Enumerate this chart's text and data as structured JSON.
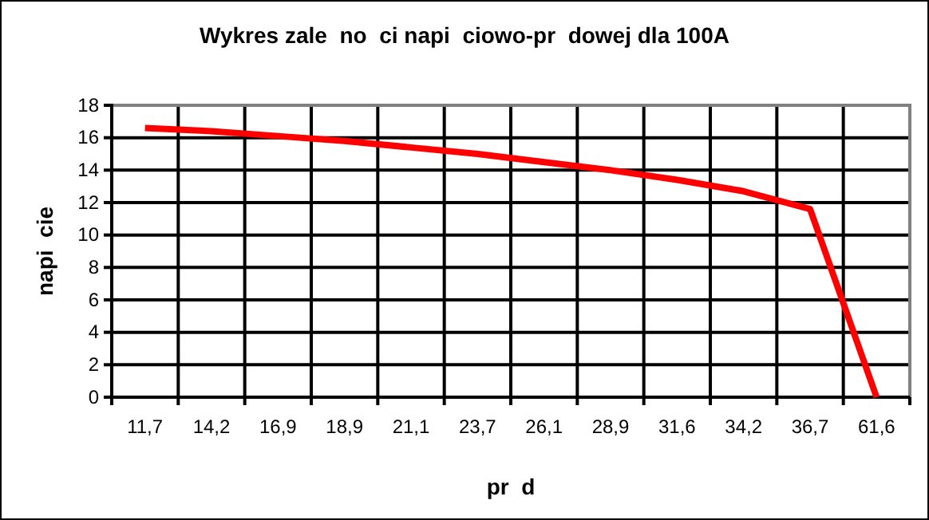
{
  "chart_data": {
    "type": "line",
    "title": "Wykres zale  no  ci napi  ciowo-pr  dowej dla 100A",
    "xlabel": "pr  d",
    "ylabel": "napi  cie",
    "categories": [
      "11,7",
      "14,2",
      "16,9",
      "18,9",
      "21,1",
      "23,7",
      "26,1",
      "28,9",
      "31,6",
      "34,2",
      "36,7",
      "61,6"
    ],
    "series": [
      {
        "color": "#ff0000",
        "values": [
          16.6,
          16.4,
          16.1,
          15.8,
          15.4,
          15.0,
          14.5,
          14.0,
          13.4,
          12.7,
          11.6,
          0
        ]
      }
    ],
    "ylim": [
      0,
      18
    ],
    "yticks": [
      0,
      2,
      4,
      6,
      8,
      10,
      12,
      14,
      16,
      18
    ],
    "grid": true,
    "marker": "none",
    "line_style": "solid"
  }
}
